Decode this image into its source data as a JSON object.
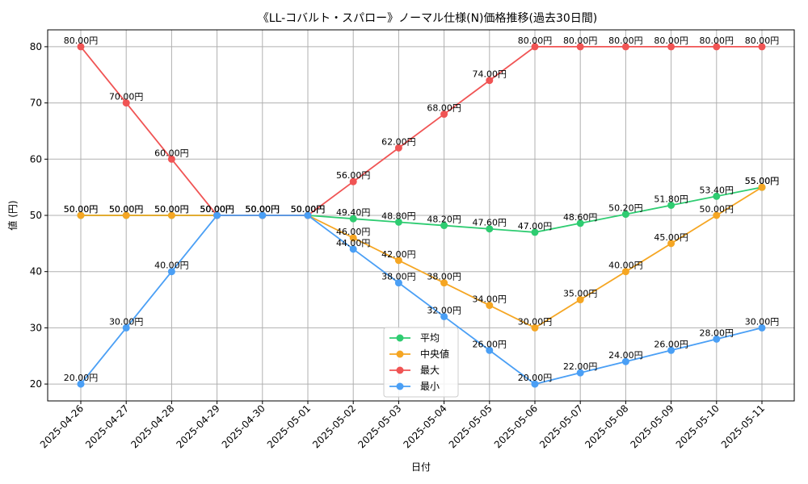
{
  "chart_data": {
    "type": "line",
    "title": "《LL-コバルト・スパロー》ノーマル仕様(N)価格推移(過去30日間)",
    "xlabel": "日付",
    "ylabel": "値 (円)",
    "ylim": [
      17,
      83
    ],
    "yticks": [
      20,
      30,
      40,
      50,
      60,
      70,
      80
    ],
    "grid": true,
    "legend_position": "bottom-center",
    "x": [
      "2025-04-26",
      "2025-04-27",
      "2025-04-28",
      "2025-04-29",
      "2025-04-30",
      "2025-05-01",
      "2025-05-02",
      "2025-05-03",
      "2025-05-04",
      "2025-05-05",
      "2025-05-06",
      "2025-05-07",
      "2025-05-08",
      "2025-05-09",
      "2025-05-10",
      "2025-05-11"
    ],
    "series": [
      {
        "name": "平均",
        "color": "#2ecc71",
        "values": [
          50,
          50,
          50,
          50,
          50,
          50,
          49.4,
          48.8,
          48.2,
          47.6,
          47.0,
          48.6,
          50.2,
          51.8,
          53.4,
          55.0
        ]
      },
      {
        "name": "中央値",
        "color": "#f5a623",
        "values": [
          50,
          50,
          50,
          50,
          50,
          50,
          46,
          42,
          38,
          34,
          30,
          35,
          40,
          45,
          50,
          55
        ]
      },
      {
        "name": "最大",
        "color": "#f05454",
        "values": [
          80,
          70,
          60,
          50,
          50,
          50,
          56,
          62,
          68,
          74,
          80,
          80,
          80,
          80,
          80,
          80
        ]
      },
      {
        "name": "最小",
        "color": "#4a9ff5",
        "values": [
          20,
          30,
          40,
          50,
          50,
          50,
          44,
          38,
          32,
          26,
          20,
          22,
          24,
          26,
          28,
          30
        ]
      }
    ],
    "label_suffix": "円"
  }
}
